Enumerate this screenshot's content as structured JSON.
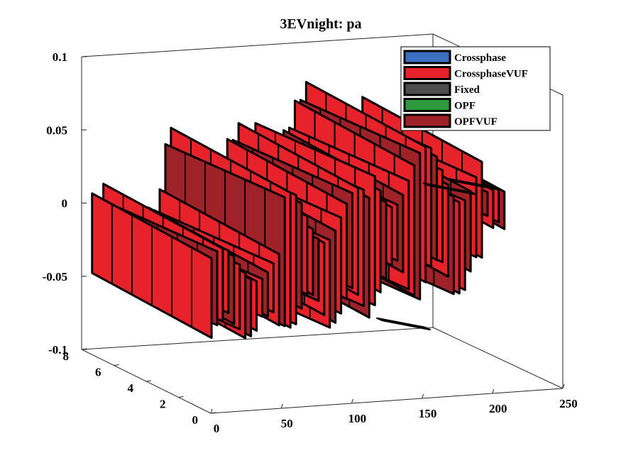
{
  "chart_data": {
    "type": "surface3d",
    "title": "3EVnight: pa",
    "xlabel": "",
    "ylabel": "",
    "zlabel": "",
    "x_ticks": [
      "0",
      "50",
      "100",
      "150",
      "200",
      "250"
    ],
    "y_ticks": [
      "0",
      "2",
      "4",
      "6",
      "8"
    ],
    "z_ticks": [
      "0.1",
      "0.05",
      "0",
      "-0.05",
      "-0.1"
    ],
    "xlim": [
      0,
      250
    ],
    "ylim": [
      0,
      8
    ],
    "zlim": [
      -0.1,
      0.1
    ],
    "grid": false,
    "legend_position": "top-right",
    "series": [
      {
        "name": "Crossphase",
        "color": "#3b6fc0"
      },
      {
        "name": "CrossphaseVUF",
        "color": "#e8222a"
      },
      {
        "name": "Fixed",
        "color": "#4d4d4d"
      },
      {
        "name": "OPF",
        "color": "#2e9a3e"
      },
      {
        "name": "OPFVUF",
        "color": "#9e2228"
      }
    ]
  }
}
